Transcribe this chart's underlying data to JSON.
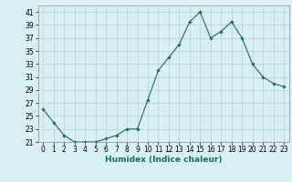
{
  "x": [
    0,
    1,
    2,
    3,
    4,
    5,
    6,
    7,
    8,
    9,
    10,
    11,
    12,
    13,
    14,
    15,
    16,
    17,
    18,
    19,
    20,
    21,
    22,
    23
  ],
  "y": [
    26,
    24,
    22,
    21,
    21,
    21,
    21.5,
    22,
    23,
    23,
    27.5,
    32,
    34,
    36,
    39.5,
    41,
    37,
    38,
    39.5,
    37,
    33,
    31,
    30,
    29.5
  ],
  "xlabel": "Humidex (Indice chaleur)",
  "xlim": [
    -0.5,
    23.5
  ],
  "ylim": [
    21,
    42
  ],
  "yticks": [
    21,
    23,
    25,
    27,
    29,
    31,
    33,
    35,
    37,
    39,
    41
  ],
  "xticks": [
    0,
    1,
    2,
    3,
    4,
    5,
    6,
    7,
    8,
    9,
    10,
    11,
    12,
    13,
    14,
    15,
    16,
    17,
    18,
    19,
    20,
    21,
    22,
    23
  ],
  "line_color": "#1a6b5a",
  "marker": "D",
  "marker_size": 1.8,
  "bg_color": "#d8f0f0",
  "grid_color": "#b8d0d0",
  "xlabel_fontsize": 6.5,
  "tick_fontsize": 5.5
}
